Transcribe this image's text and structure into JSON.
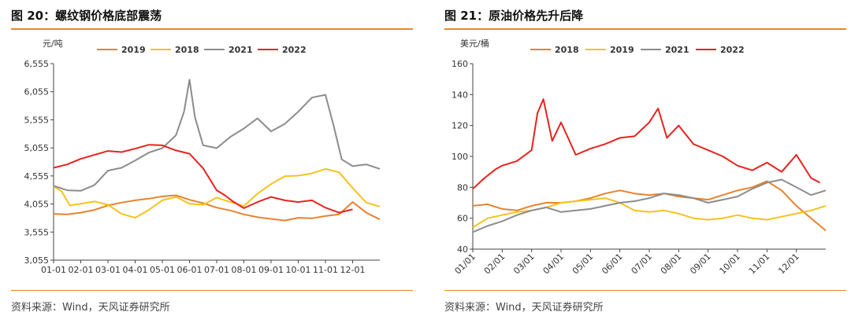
{
  "left_panel": {
    "title": "图 20：螺纹钢价格底部震荡",
    "source": "资料来源：Wind，天风证券研究所"
  },
  "right_panel": {
    "title": "图 21：原油价格先升后降",
    "source": "资料来源：Wind，天风证券研究所"
  },
  "chart_data": [
    {
      "type": "line",
      "unit_label": "元/吨",
      "ylim": [
        3055,
        6555
      ],
      "yticks": [
        "6,555",
        "6,055",
        "5,555",
        "5,055",
        "4,555",
        "4,055",
        "3,555",
        "3,055"
      ],
      "ytick_values": [
        6555,
        6055,
        5555,
        5055,
        4555,
        4055,
        3555,
        3055
      ],
      "xlim": [
        0,
        12
      ],
      "xticks": [
        "01-01",
        "02-01",
        "03-01",
        "04-01",
        "05-01",
        "06-01",
        "07-01",
        "08-01",
        "09-01",
        "10-01",
        "11-01",
        "12-01"
      ],
      "legend_position": "top",
      "series": [
        {
          "name": "2019",
          "color": "#e8822e",
          "x": [
            0,
            0.5,
            1,
            1.5,
            2,
            2.5,
            3,
            3.5,
            4,
            4.5,
            5,
            5.5,
            6,
            6.5,
            7,
            7.5,
            8,
            8.5,
            9,
            9.5,
            10,
            10.5,
            11,
            11.5,
            12
          ],
          "y": [
            3880,
            3870,
            3900,
            3950,
            4030,
            4080,
            4120,
            4150,
            4190,
            4210,
            4130,
            4070,
            3990,
            3940,
            3870,
            3820,
            3790,
            3760,
            3810,
            3800,
            3840,
            3870,
            4090,
            3900,
            3780
          ]
        },
        {
          "name": "2018",
          "color": "#f6c21c",
          "x": [
            0,
            0.3,
            0.6,
            1,
            1.5,
            2,
            2.5,
            3,
            3.5,
            4,
            4.5,
            5,
            5.5,
            6,
            6.5,
            7,
            7.5,
            8,
            8.5,
            9,
            9.5,
            10,
            10.5,
            11,
            11.5,
            12
          ],
          "y": [
            4370,
            4280,
            4030,
            4060,
            4100,
            4040,
            3880,
            3810,
            3950,
            4120,
            4180,
            4060,
            4040,
            4170,
            4090,
            4020,
            4240,
            4410,
            4550,
            4560,
            4600,
            4680,
            4620,
            4340,
            4080,
            4010
          ]
        },
        {
          "name": "2021",
          "color": "#8c8c8c",
          "x": [
            0,
            0.5,
            1,
            1.5,
            2,
            2.5,
            3,
            3.5,
            4,
            4.5,
            4.8,
            5,
            5.2,
            5.5,
            6,
            6.5,
            7,
            7.5,
            8,
            8.5,
            9,
            9.5,
            10,
            10.3,
            10.6,
            11,
            11.5,
            12
          ],
          "y": [
            4380,
            4300,
            4290,
            4390,
            4650,
            4700,
            4830,
            4970,
            5050,
            5280,
            5700,
            6270,
            5600,
            5100,
            5050,
            5250,
            5400,
            5580,
            5350,
            5480,
            5700,
            5950,
            6000,
            5450,
            4850,
            4730,
            4760,
            4680
          ]
        },
        {
          "name": "2022",
          "color": "#e8221e",
          "x": [
            0,
            0.5,
            1,
            1.5,
            2,
            2.5,
            3,
            3.5,
            4,
            4.5,
            5,
            5.5,
            6,
            6.3,
            6.6,
            7,
            7.5,
            8,
            8.5,
            9,
            9.5,
            10,
            10.5,
            11
          ],
          "y": [
            4700,
            4760,
            4860,
            4930,
            5000,
            4980,
            5040,
            5110,
            5100,
            5010,
            4950,
            4690,
            4300,
            4210,
            4100,
            3980,
            4090,
            4180,
            4120,
            4090,
            4120,
            3990,
            3900,
            3960
          ]
        }
      ]
    },
    {
      "type": "line",
      "unit_label": "美元/桶",
      "ylim": [
        40,
        160
      ],
      "yticks": [
        "160",
        "140",
        "120",
        "100",
        "80",
        "60",
        "40"
      ],
      "ytick_values": [
        160,
        140,
        120,
        100,
        80,
        60,
        40
      ],
      "xlim": [
        0,
        12
      ],
      "xticks": [
        "01/01",
        "02/01",
        "03/01",
        "04/01",
        "05/01",
        "06/01",
        "07/01",
        "08/01",
        "09/01",
        "10/01",
        "11/01",
        "12/01"
      ],
      "legend_position": "top",
      "series": [
        {
          "name": "2018",
          "color": "#e8822e",
          "x": [
            0,
            0.5,
            1,
            1.5,
            2,
            2.5,
            3,
            3.5,
            4,
            4.5,
            5,
            5.5,
            6,
            6.5,
            7,
            7.5,
            8,
            8.5,
            9,
            9.5,
            10,
            10.5,
            11,
            11.5,
            12
          ],
          "y": [
            68,
            69,
            66,
            65,
            68,
            70,
            70,
            71,
            73,
            76,
            78,
            76,
            75,
            76,
            74,
            73,
            72,
            75,
            78,
            80,
            84,
            78,
            68,
            60,
            52
          ]
        },
        {
          "name": "2019",
          "color": "#f6c21c",
          "x": [
            0,
            0.5,
            1,
            1.5,
            2,
            2.5,
            3,
            3.5,
            4,
            4.5,
            5,
            5.5,
            6,
            6.5,
            7,
            7.5,
            8,
            8.5,
            9,
            9.5,
            10,
            10.5,
            11,
            11.5,
            12
          ],
          "y": [
            54,
            60,
            62,
            64,
            65,
            67,
            70,
            71,
            72,
            73,
            70,
            65,
            64,
            65,
            63,
            60,
            59,
            60,
            62,
            60,
            59,
            61,
            63,
            65,
            68
          ]
        },
        {
          "name": "2021",
          "color": "#8c8c8c",
          "x": [
            0,
            0.5,
            1,
            1.5,
            2,
            2.5,
            3,
            3.5,
            4,
            4.5,
            5,
            5.5,
            6,
            6.5,
            7,
            7.5,
            8,
            8.5,
            9,
            9.5,
            10,
            10.5,
            11,
            11.5,
            12
          ],
          "y": [
            51,
            55,
            58,
            62,
            65,
            67,
            64,
            65,
            66,
            68,
            70,
            71,
            73,
            76,
            75,
            73,
            70,
            72,
            74,
            79,
            83,
            85,
            80,
            75,
            78
          ]
        },
        {
          "name": "2022",
          "color": "#e8221e",
          "x": [
            0,
            0.4,
            0.8,
            1,
            1.5,
            2,
            2.2,
            2.4,
            2.7,
            3,
            3.5,
            4,
            4.5,
            5,
            5.5,
            6,
            6.3,
            6.6,
            7,
            7.5,
            8,
            8.5,
            9,
            9.5,
            10,
            10.5,
            11,
            11.5,
            11.8
          ],
          "y": [
            79,
            86,
            92,
            94,
            97,
            104,
            128,
            137,
            110,
            122,
            101,
            105,
            108,
            112,
            113,
            122,
            131,
            112,
            120,
            108,
            104,
            100,
            94,
            91,
            96,
            90,
            101,
            86,
            83
          ]
        }
      ]
    }
  ]
}
